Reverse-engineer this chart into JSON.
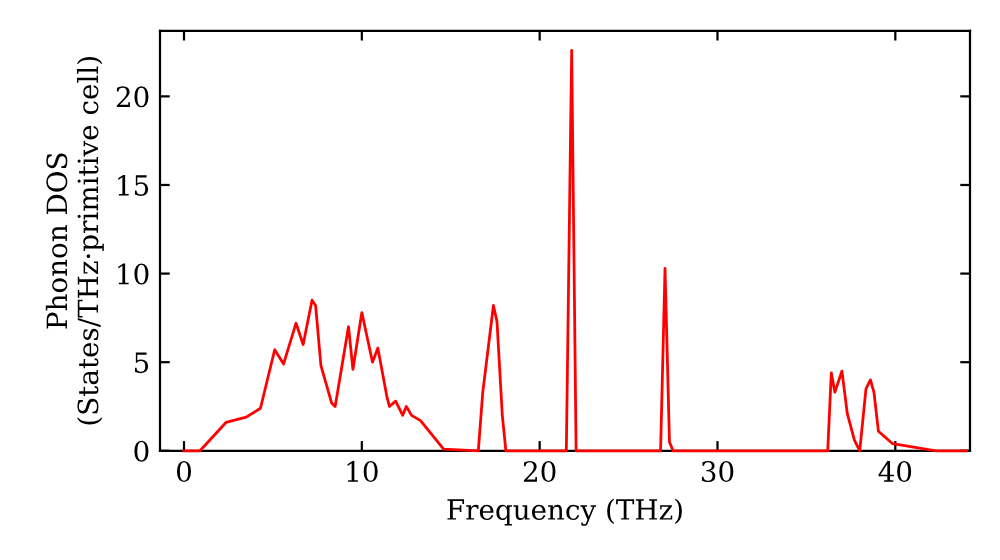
{
  "chart_data": {
    "type": "line",
    "xlabel": "Frequency (THz)",
    "ylabel": "Phonon DOS\n(States/THz·primitive cell)",
    "x": [
      0,
      0.9,
      2.36,
      3.5,
      4.3,
      5.1,
      5.6,
      6.3,
      6.7,
      7.2,
      7.4,
      7.7,
      8.3,
      8.5,
      9.25,
      9.5,
      10.0,
      10.6,
      10.9,
      11.4,
      11.55,
      11.9,
      12.3,
      12.5,
      12.8,
      13.3,
      14.6,
      16.55,
      16.8,
      17.4,
      17.6,
      17.9,
      18.1,
      21.5,
      21.8,
      22.05,
      26.8,
      27.05,
      27.3,
      27.5,
      36.2,
      36.4,
      36.6,
      37.0,
      37.3,
      37.7,
      38.0,
      38.35,
      38.6,
      38.8,
      39.05,
      39.85,
      41.7,
      42.3,
      44
    ],
    "series": [
      {
        "color": "#ff0000",
        "values": [
          0,
          0,
          1.6,
          1.9,
          2.4,
          5.7,
          4.9,
          7.2,
          6.0,
          8.5,
          8.2,
          4.8,
          2.7,
          2.5,
          7.0,
          4.6,
          7.8,
          5.0,
          5.8,
          3.1,
          2.5,
          2.8,
          2.0,
          2.5,
          2.0,
          1.7,
          0.1,
          0,
          3.3,
          8.2,
          7.3,
          2.0,
          0,
          0,
          22.6,
          0,
          0,
          10.3,
          0.5,
          0,
          0,
          4.4,
          3.3,
          4.5,
          2.1,
          0.6,
          0,
          3.5,
          4.0,
          3.3,
          1.1,
          0.4,
          0.1,
          0,
          0
        ]
      }
    ],
    "xlim": [
      -1.35,
      44.2
    ],
    "ylim": [
      0,
      23.7
    ],
    "xticks": [
      0,
      10,
      20,
      30,
      40
    ],
    "yticks": [
      0,
      5,
      10,
      15,
      20
    ],
    "grid": false,
    "legend": false,
    "marker": "none",
    "line_style": "solid"
  }
}
